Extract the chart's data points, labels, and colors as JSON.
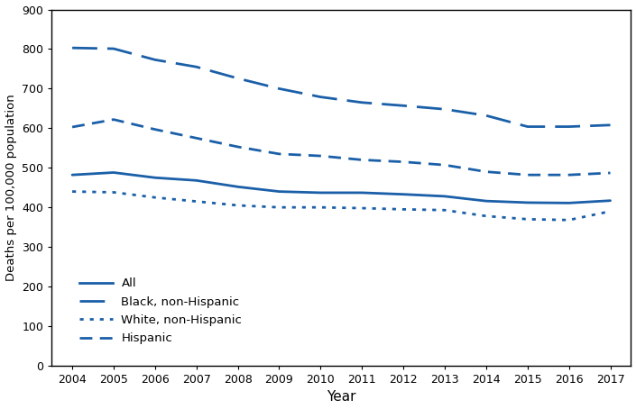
{
  "years": [
    2004,
    2005,
    2006,
    2007,
    2008,
    2009,
    2010,
    2011,
    2012,
    2013,
    2014,
    2015,
    2016,
    2017
  ],
  "all": [
    482,
    488,
    475,
    468,
    452,
    440,
    437,
    437,
    433,
    428,
    416,
    412,
    411,
    417
  ],
  "black_non_hispanic": [
    803,
    801,
    773,
    755,
    726,
    700,
    679,
    665,
    657,
    648,
    632,
    604,
    604,
    608
  ],
  "white_non_hispanic": [
    440,
    438,
    425,
    415,
    405,
    400,
    400,
    398,
    395,
    393,
    378,
    370,
    368,
    390
  ],
  "hispanic": [
    603,
    622,
    597,
    575,
    553,
    535,
    530,
    520,
    515,
    507,
    490,
    482,
    482,
    487
  ],
  "line_color": "#1a5fa8",
  "ylabel": "Deaths per 100,000 population",
  "xlabel": "Year",
  "ylim": [
    0,
    900
  ],
  "yticks": [
    0,
    100,
    200,
    300,
    400,
    500,
    600,
    700,
    800,
    900
  ],
  "legend_labels": [
    "All",
    "Black, non-Hispanic",
    "White, non-Hispanic",
    "Hispanic"
  ],
  "background_color": "#ffffff",
  "lw": 2.0
}
